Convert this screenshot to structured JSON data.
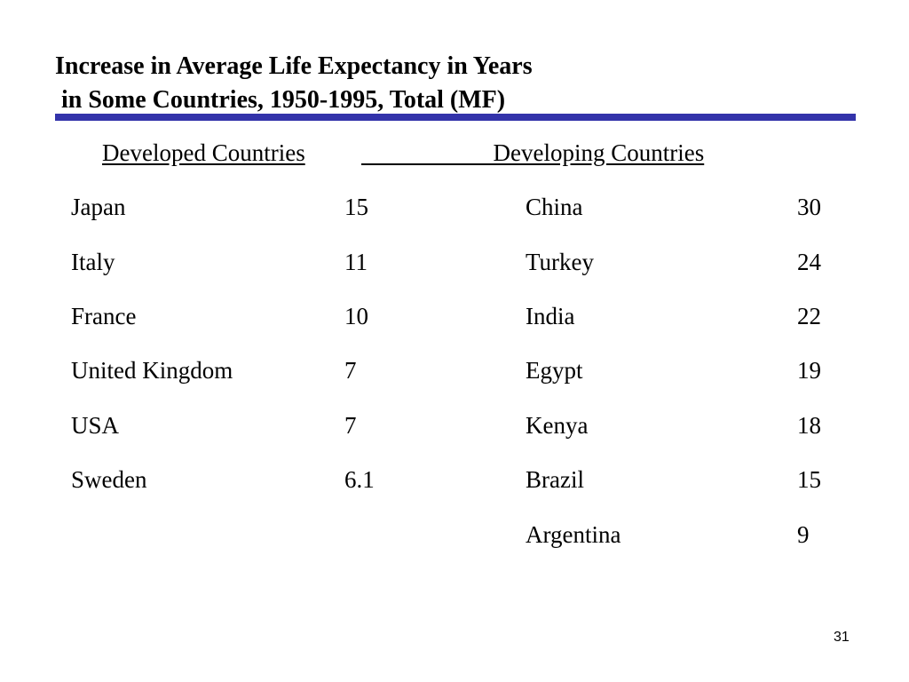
{
  "slide": {
    "title_line1": "Increase in Average Life Expectancy in Years",
    "title_line2": " in Some Countries, 1950-1995, Total (MF)",
    "accent_color": "#3333aa",
    "page_number": "31"
  },
  "developed": {
    "header": "Developed Countries",
    "rows": [
      {
        "country": "Japan",
        "value": "15"
      },
      {
        "country": "Italy",
        "value": "11"
      },
      {
        "country": "France",
        "value": "10"
      },
      {
        "country": "United Kingdom",
        "value": "7"
      },
      {
        "country": "USA",
        "value": "7"
      },
      {
        "country": "Sweden",
        "value": "6.1"
      }
    ]
  },
  "developing": {
    "header": "                      Developing Countries",
    "rows": [
      {
        "country": "China",
        "value": "30"
      },
      {
        "country": "Turkey",
        "value": "24"
      },
      {
        "country": "India",
        "value": "22"
      },
      {
        "country": "Egypt",
        "value": "19"
      },
      {
        "country": "Kenya",
        "value": "18"
      },
      {
        "country": "Brazil",
        "value": "15"
      },
      {
        "country": "Argentina",
        "value": "9"
      }
    ]
  }
}
